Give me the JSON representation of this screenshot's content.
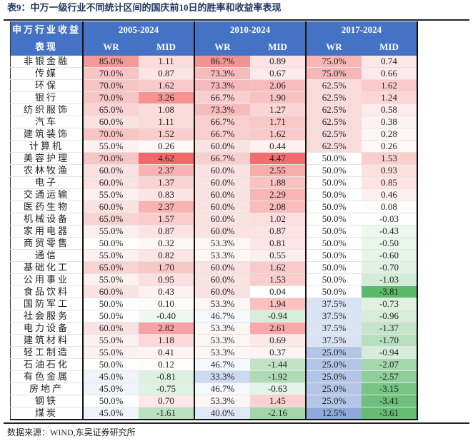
{
  "title": "表9：中万一级行业不同统计区间的国庆前10日的胜率和收益率表现",
  "header": {
    "corner_line1": "申万行业收益",
    "corner_line2": "表现",
    "periods": [
      "2005-2024",
      "2010-2024",
      "2017-2024"
    ],
    "wr_label": "WR",
    "mid_label": "MID"
  },
  "colors": {
    "header_bg": "#4472c4",
    "positive": "#f26868",
    "negative": "#5cb86a",
    "wr_low": "#8eaadb"
  },
  "rows": [
    [
      "非银金融",
      "85.0%",
      "1.11",
      "86.7%",
      "0.89",
      "75.0%",
      "0.74"
    ],
    [
      "传媒",
      "70.0%",
      "0.87",
      "73.3%",
      "0.67",
      "75.0%",
      "0.66"
    ],
    [
      "环保",
      "70.0%",
      "1.62",
      "73.3%",
      "2.06",
      "62.5%",
      "1.62"
    ],
    [
      "银行",
      "70.0%",
      "3.26",
      "66.7%",
      "1.90",
      "62.5%",
      "1.24"
    ],
    [
      "纺织服饰",
      "65.0%",
      "1.08",
      "73.3%",
      "1.27",
      "62.5%",
      "0.58"
    ],
    [
      "汽车",
      "60.0%",
      "1.11",
      "66.7%",
      "1.71",
      "62.5%",
      "0.38"
    ],
    [
      "建筑装饰",
      "70.0%",
      "1.52",
      "66.7%",
      "1.62",
      "62.5%",
      "0.28"
    ],
    [
      "计算机",
      "55.0%",
      "0.26",
      "60.0%",
      "0.44",
      "62.5%",
      "0.26"
    ],
    [
      "美容护理",
      "70.0%",
      "4.62",
      "66.7%",
      "4.47",
      "50.0%",
      "1.53"
    ],
    [
      "农林牧渔",
      "60.0%",
      "2.37",
      "60.0%",
      "2.55",
      "50.0%",
      "0.93"
    ],
    [
      "电子",
      "60.0%",
      "1.37",
      "60.0%",
      "1.88",
      "50.0%",
      "0.85"
    ],
    [
      "交通运输",
      "55.0%",
      "0.83",
      "60.0%",
      "2.29",
      "50.0%",
      "0.46"
    ],
    [
      "医药生物",
      "60.0%",
      "2.37",
      "60.0%",
      "2.08",
      "50.0%",
      "0.08"
    ],
    [
      "机械设备",
      "65.0%",
      "1.57",
      "60.0%",
      "1.02",
      "50.0%",
      "-0.03"
    ],
    [
      "家用电器",
      "55.0%",
      "0.87",
      "60.0%",
      "0.87",
      "50.0%",
      "-0.43"
    ],
    [
      "商贸零售",
      "50.0%",
      "0.32",
      "53.3%",
      "0.81",
      "50.0%",
      "-0.50"
    ],
    [
      "通信",
      "55.0%",
      "0.82",
      "53.3%",
      "0.55",
      "50.0%",
      "-0.60"
    ],
    [
      "基础化工",
      "65.0%",
      "1.70",
      "60.0%",
      "1.62",
      "50.0%",
      "-0.70"
    ],
    [
      "公用事业",
      "55.0%",
      "0.95",
      "60.0%",
      "1.53",
      "50.0%",
      "-1.03"
    ],
    [
      "食品饮料",
      "60.0%",
      "0.43",
      "60.0%",
      "0.04",
      "50.0%",
      "-3.81"
    ],
    [
      "国防军工",
      "50.0%",
      "0.10",
      "53.3%",
      "1.94",
      "37.5%",
      "-0.73"
    ],
    [
      "社会服务",
      "50.0%",
      "-0.40",
      "46.7%",
      "-0.94",
      "37.5%",
      "-0.96"
    ],
    [
      "电力设备",
      "60.0%",
      "2.82",
      "53.3%",
      "2.61",
      "37.5%",
      "-1.37"
    ],
    [
      "建筑材料",
      "55.0%",
      "1.18",
      "53.3%",
      "0.69",
      "37.5%",
      "-1.70"
    ],
    [
      "轻工制造",
      "55.0%",
      "0.41",
      "53.3%",
      "0.37",
      "25.0%",
      "-0.94"
    ],
    [
      "石油石化",
      "50.0%",
      "0.12",
      "46.7%",
      "-1.44",
      "25.0%",
      "-2.07"
    ],
    [
      "有色金属",
      "45.0%",
      "-0.81",
      "33.3%",
      "-1.92",
      "25.0%",
      "-2.57"
    ],
    [
      "房地产",
      "45.0%",
      "-0.75",
      "46.7%",
      "-0.63",
      "25.0%",
      "-3.15"
    ],
    [
      "钢铁",
      "50.0%",
      "0.70",
      "53.3%",
      "1.45",
      "25.0%",
      "-3.41"
    ],
    [
      "煤炭",
      "45.0%",
      "-1.61",
      "40.0%",
      "-2.16",
      "12.5%",
      "-3.61"
    ]
  ],
  "source": "数据来源：WIND,东吴证券研究所"
}
